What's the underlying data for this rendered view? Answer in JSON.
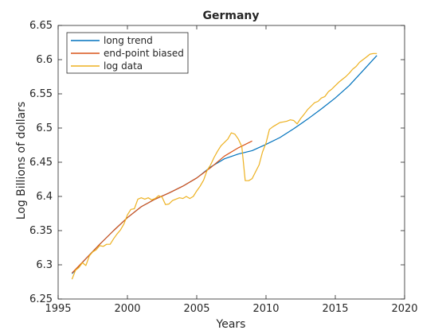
{
  "chart_data": {
    "type": "line",
    "title": "Germany",
    "xlabel": "Years",
    "ylabel": "Log Billions of dollars",
    "xlim": [
      1995,
      2020
    ],
    "ylim": [
      6.25,
      6.65
    ],
    "xticks": [
      1995,
      2000,
      2005,
      2010,
      2015,
      2020
    ],
    "yticks": [
      6.25,
      6.3,
      6.35,
      6.4,
      6.45,
      6.5,
      6.55,
      6.6,
      6.65
    ],
    "ytick_labels": [
      "6.25",
      "6.3",
      "6.35",
      "6.4",
      "6.45",
      "6.5",
      "6.55",
      "6.6",
      "6.65"
    ],
    "grid": false,
    "legend_position": "top-left",
    "series": [
      {
        "name": "long trend",
        "color": "#0072BD",
        "x": [
          1996.0,
          1997.0,
          1998.0,
          1999.0,
          2000.0,
          2001.0,
          2002.0,
          2003.0,
          2004.0,
          2005.0,
          2006.0,
          2007.0,
          2008.0,
          2009.0,
          2010.0,
          2011.0,
          2012.0,
          2013.0,
          2014.0,
          2015.0,
          2016.0,
          2017.0,
          2018.0
        ],
        "y": [
          6.287,
          6.309,
          6.33,
          6.35,
          6.369,
          6.385,
          6.396,
          6.405,
          6.415,
          6.427,
          6.443,
          6.455,
          6.462,
          6.467,
          6.476,
          6.486,
          6.499,
          6.513,
          6.528,
          6.544,
          6.562,
          6.584,
          6.606
        ]
      },
      {
        "name": "end-point biased",
        "color": "#D95319",
        "x": [
          1996.0,
          1997.0,
          1998.0,
          1999.0,
          2000.0,
          2001.0,
          2002.0,
          2003.0,
          2004.0,
          2005.0,
          2006.0,
          2007.0,
          2008.0,
          2009.0
        ],
        "y": [
          6.288,
          6.309,
          6.33,
          6.35,
          6.369,
          6.385,
          6.396,
          6.405,
          6.415,
          6.427,
          6.442,
          6.459,
          6.471,
          6.481
        ]
      },
      {
        "name": "log data",
        "color": "#EDB120",
        "x": [
          1996.0,
          1996.25,
          1996.5,
          1996.75,
          1997.0,
          1997.25,
          1997.5,
          1997.75,
          1998.0,
          1998.25,
          1998.5,
          1998.75,
          1999.0,
          1999.25,
          1999.5,
          1999.75,
          2000.0,
          2000.25,
          2000.5,
          2000.75,
          2001.0,
          2001.25,
          2001.5,
          2001.75,
          2002.0,
          2002.25,
          2002.5,
          2002.75,
          2003.0,
          2003.25,
          2003.5,
          2003.75,
          2004.0,
          2004.25,
          2004.5,
          2004.75,
          2005.0,
          2005.25,
          2005.5,
          2005.75,
          2006.0,
          2006.25,
          2006.5,
          2006.75,
          2007.0,
          2007.25,
          2007.5,
          2007.75,
          2008.0,
          2008.25,
          2008.5,
          2008.75,
          2009.0,
          2009.25,
          2009.5,
          2009.75,
          2010.0,
          2010.25,
          2010.5,
          2010.75,
          2011.0,
          2011.25,
          2011.5,
          2011.75,
          2012.0,
          2012.25,
          2012.5,
          2012.75,
          2013.0,
          2013.25,
          2013.5,
          2013.75,
          2014.0,
          2014.25,
          2014.5,
          2014.75,
          2015.0,
          2015.25,
          2015.5,
          2015.75,
          2016.0,
          2016.25,
          2016.5,
          2016.75,
          2017.0,
          2017.25,
          2017.5,
          2017.75,
          2018.0
        ],
        "y": [
          6.279,
          6.292,
          6.296,
          6.303,
          6.299,
          6.313,
          6.319,
          6.322,
          6.328,
          6.327,
          6.33,
          6.33,
          6.338,
          6.345,
          6.351,
          6.36,
          6.373,
          6.381,
          6.382,
          6.396,
          6.398,
          6.396,
          6.398,
          6.395,
          6.397,
          6.401,
          6.399,
          6.388,
          6.389,
          6.394,
          6.396,
          6.398,
          6.397,
          6.4,
          6.397,
          6.4,
          6.408,
          6.415,
          6.424,
          6.438,
          6.446,
          6.457,
          6.466,
          6.474,
          6.479,
          6.484,
          6.493,
          6.491,
          6.484,
          6.473,
          6.423,
          6.423,
          6.426,
          6.436,
          6.446,
          6.465,
          6.478,
          6.498,
          6.502,
          6.505,
          6.508,
          6.509,
          6.51,
          6.512,
          6.511,
          6.506,
          6.514,
          6.52,
          6.527,
          6.532,
          6.537,
          6.539,
          6.544,
          6.546,
          6.553,
          6.557,
          6.562,
          6.567,
          6.571,
          6.575,
          6.58,
          6.586,
          6.59,
          6.596,
          6.6,
          6.604,
          6.608,
          6.609,
          6.609
        ]
      }
    ]
  }
}
